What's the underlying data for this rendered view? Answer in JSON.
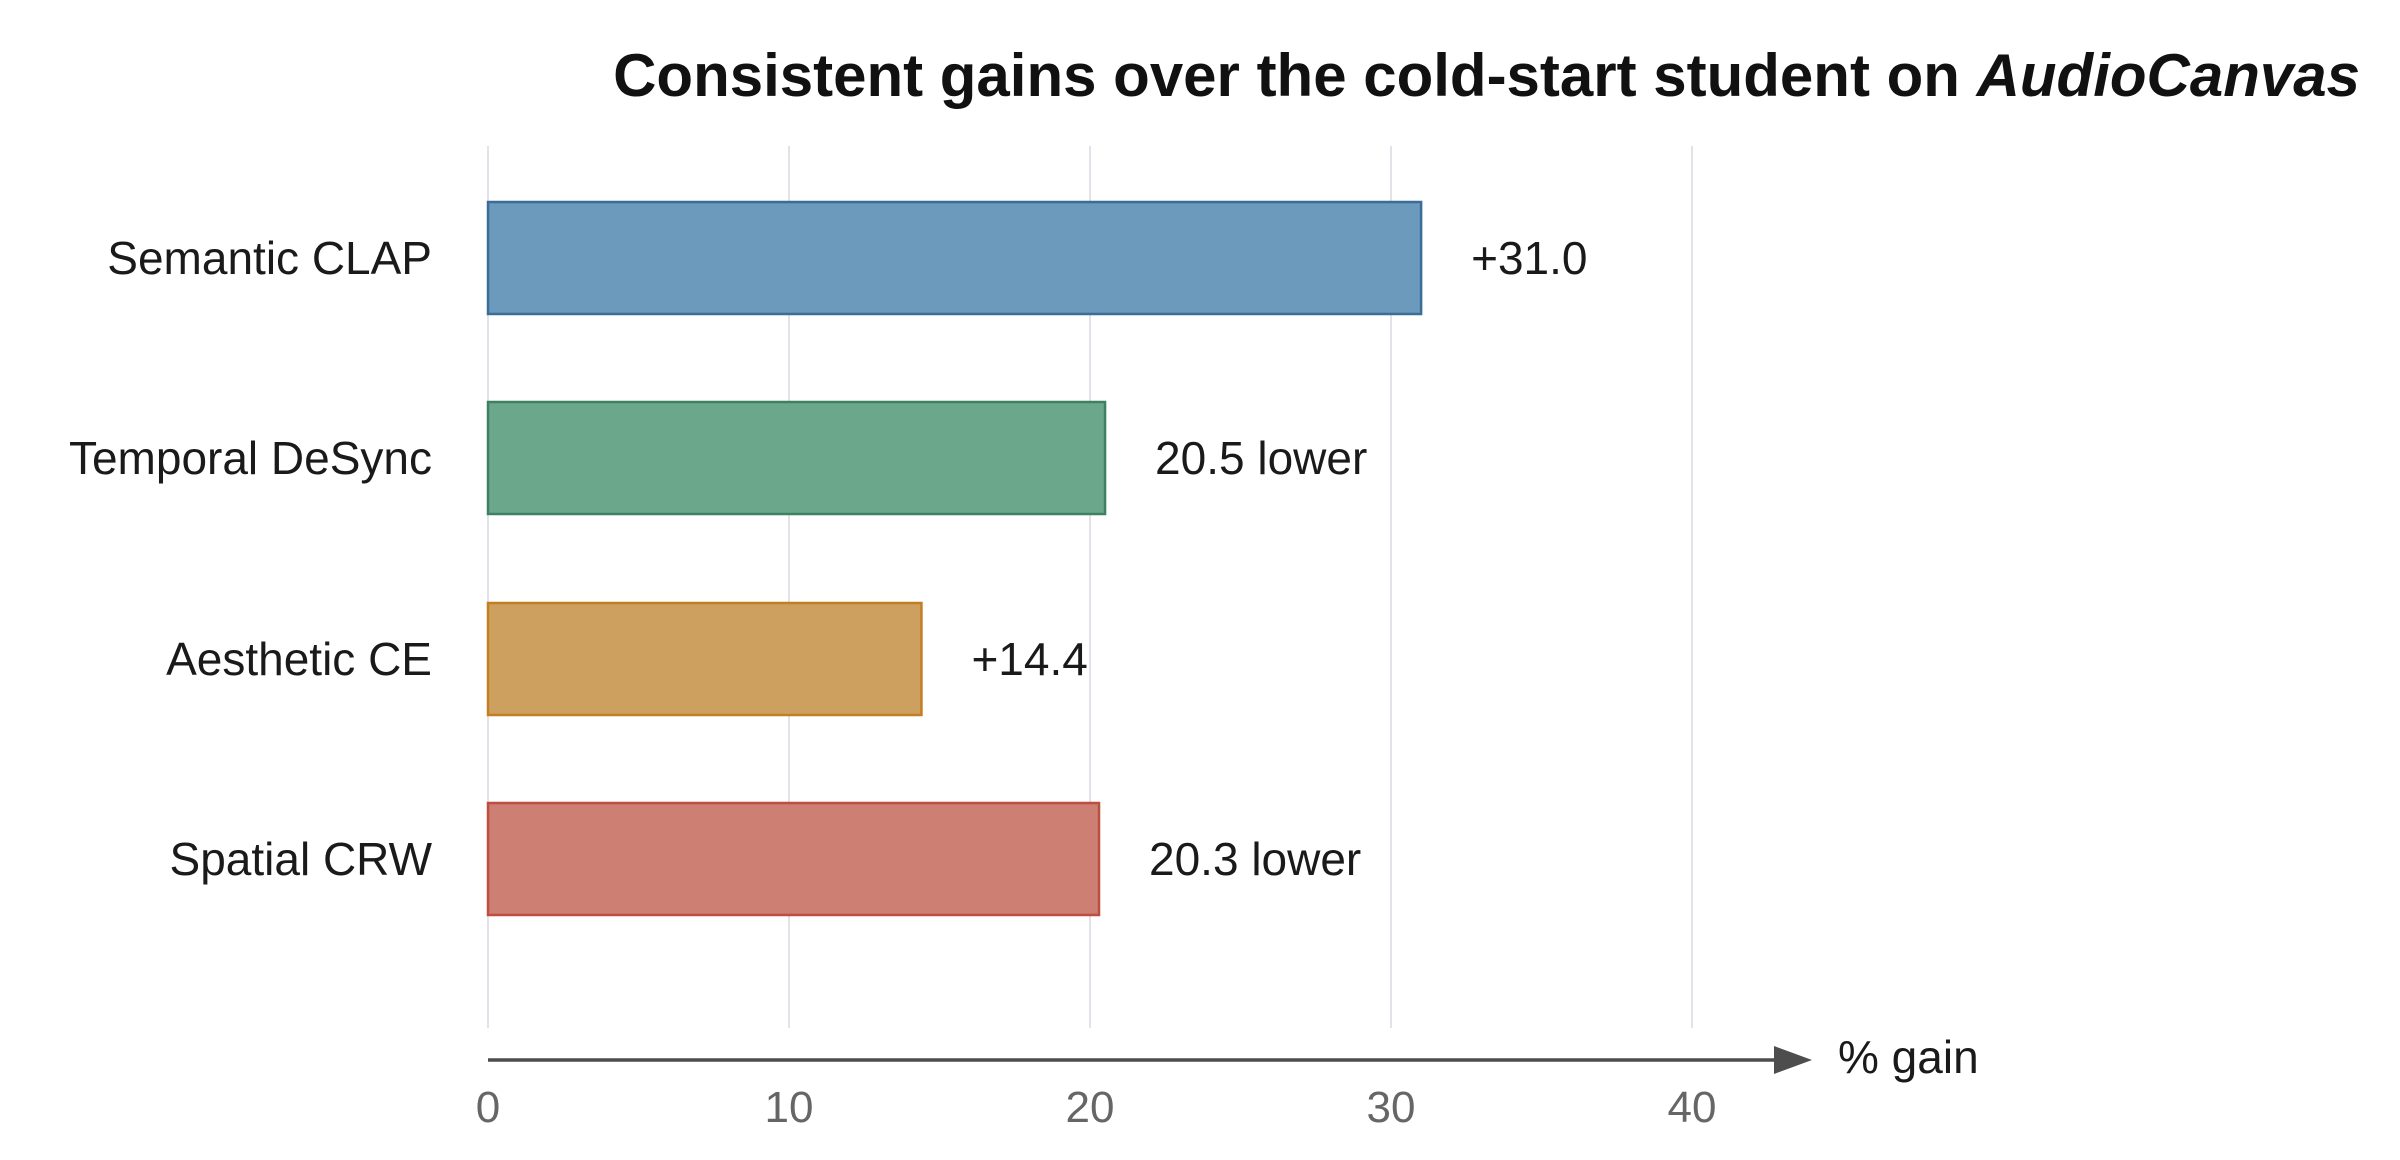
{
  "chart_data": {
    "type": "bar",
    "orientation": "horizontal",
    "title": "Consistent gains over the cold-start student on",
    "title_emphasis": "AudioCanvas",
    "xlabel": "% gain",
    "ylabel": "",
    "xlim": [
      0,
      43
    ],
    "xticks": [
      0,
      10,
      20,
      30,
      40
    ],
    "grid": true,
    "categories": [
      "Semantic CLAP",
      "Temporal DeSync",
      "Aesthetic CE",
      "Spatial CRW"
    ],
    "values": [
      31.0,
      20.5,
      14.4,
      20.3
    ],
    "data_labels": [
      "+31.0",
      "20.5 lower",
      "+14.4",
      "20.3 lower"
    ],
    "colors": [
      "#6b9abd",
      "#6ba88b",
      "#cda05f",
      "#cc7f72"
    ],
    "edge_colors": [
      "#3b6d96",
      "#3d8062",
      "#c27f22",
      "#bd4f40"
    ]
  }
}
